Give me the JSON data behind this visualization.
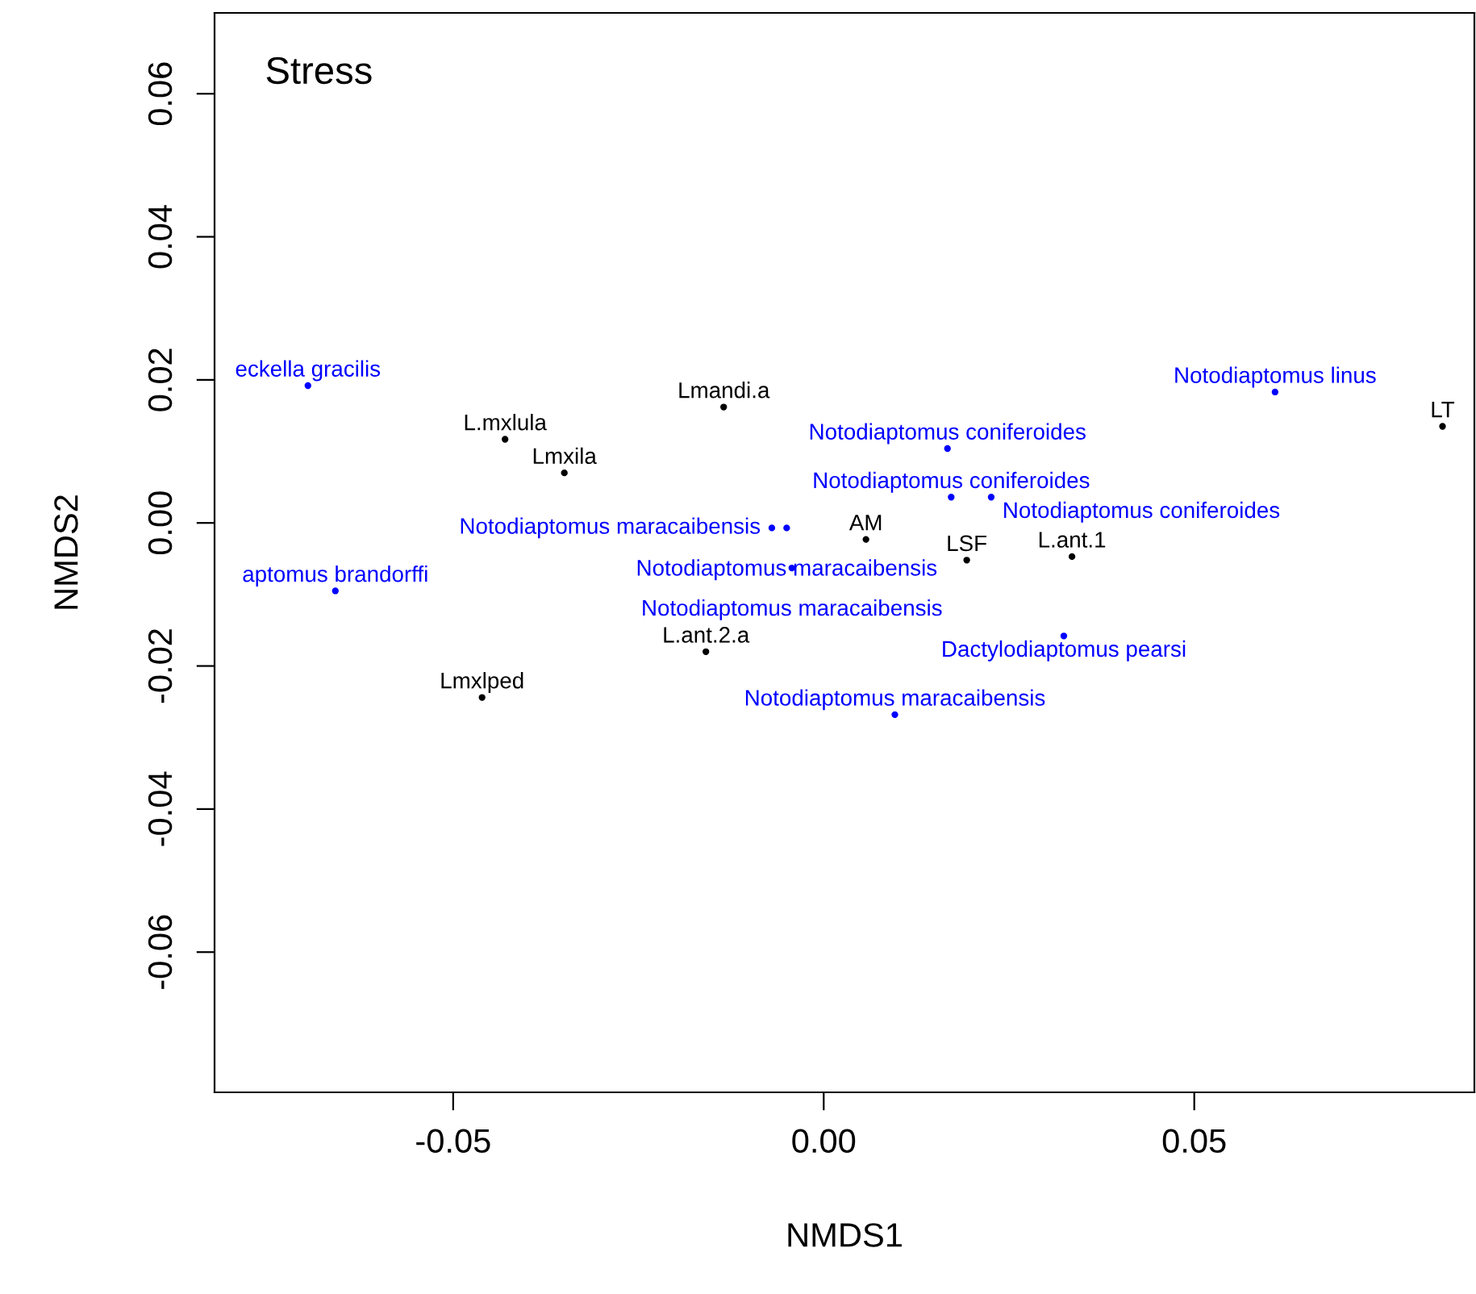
{
  "chart_data": {
    "type": "scatter",
    "xlabel": "NMDS1",
    "ylabel": "NMDS2",
    "annotations": [
      "Stress"
    ],
    "marker": "circle",
    "grid": false,
    "legend": false,
    "xlim": [
      -0.0822,
      0.0878
    ],
    "ylim": [
      -0.0796,
      0.0713
    ],
    "xticks": [
      {
        "value": -0.05,
        "label": "-0.05"
      },
      {
        "value": 0,
        "label": "0.00"
      },
      {
        "value": 0.05,
        "label": "0.05"
      }
    ],
    "yticks": [
      {
        "value": -0.06,
        "label": "-0.06"
      },
      {
        "value": -0.04,
        "label": "-0.04"
      },
      {
        "value": -0.02,
        "label": "-0.02"
      },
      {
        "value": 0,
        "label": "0.00"
      },
      {
        "value": 0.02,
        "label": "0.02"
      },
      {
        "value": 0.04,
        "label": "0.04"
      },
      {
        "value": 0.06,
        "label": "0.06"
      }
    ],
    "series": [
      {
        "color": "#000000",
        "x": [
          -0.0135,
          -0.043,
          -0.035,
          0.0057,
          0.0193,
          0.0335,
          0.0835,
          -0.0159,
          -0.0461
        ],
        "values": [
          0.0162,
          0.0117,
          0.007,
          -0.0023,
          -0.0052,
          -0.0047,
          0.0135,
          -0.018,
          -0.0244
        ],
        "value_labels": [
          "Lmandi.a",
          "L.mxlula",
          "Lmxila",
          "AM",
          "LSF",
          "L.ant.1",
          "LT",
          "L.ant.2.a",
          "Lmxlped"
        ]
      },
      {
        "color": "#0000ff",
        "x": [
          -0.0696,
          0.0609,
          0.0167,
          0.0172,
          0.0226,
          -0.007,
          -0.005,
          -0.0043,
          -0.0659,
          0.0324,
          0.0096
        ],
        "values": [
          0.0192,
          0.0183,
          0.0104,
          0.0036,
          0.0036,
          -0.0007,
          -0.0007,
          -0.0063,
          -0.0095,
          -0.0158,
          -0.0268
        ],
        "value_labels": [
          "eckella gracilis",
          "Notodiaptomus linus",
          "Notodiaptomus coniferoides",
          "Notodiaptomus coniferoides",
          "Notodiaptomus coniferoides",
          "Notodiaptomus maracaibensis",
          "Notodiaptomus maracaibensis",
          "Notodiaptomus maracaibensis",
          "aptomus brandorffi",
          "Dactylodiaptomus pearsi",
          "Notodiaptomus maracaibensis"
        ]
      }
    ]
  }
}
